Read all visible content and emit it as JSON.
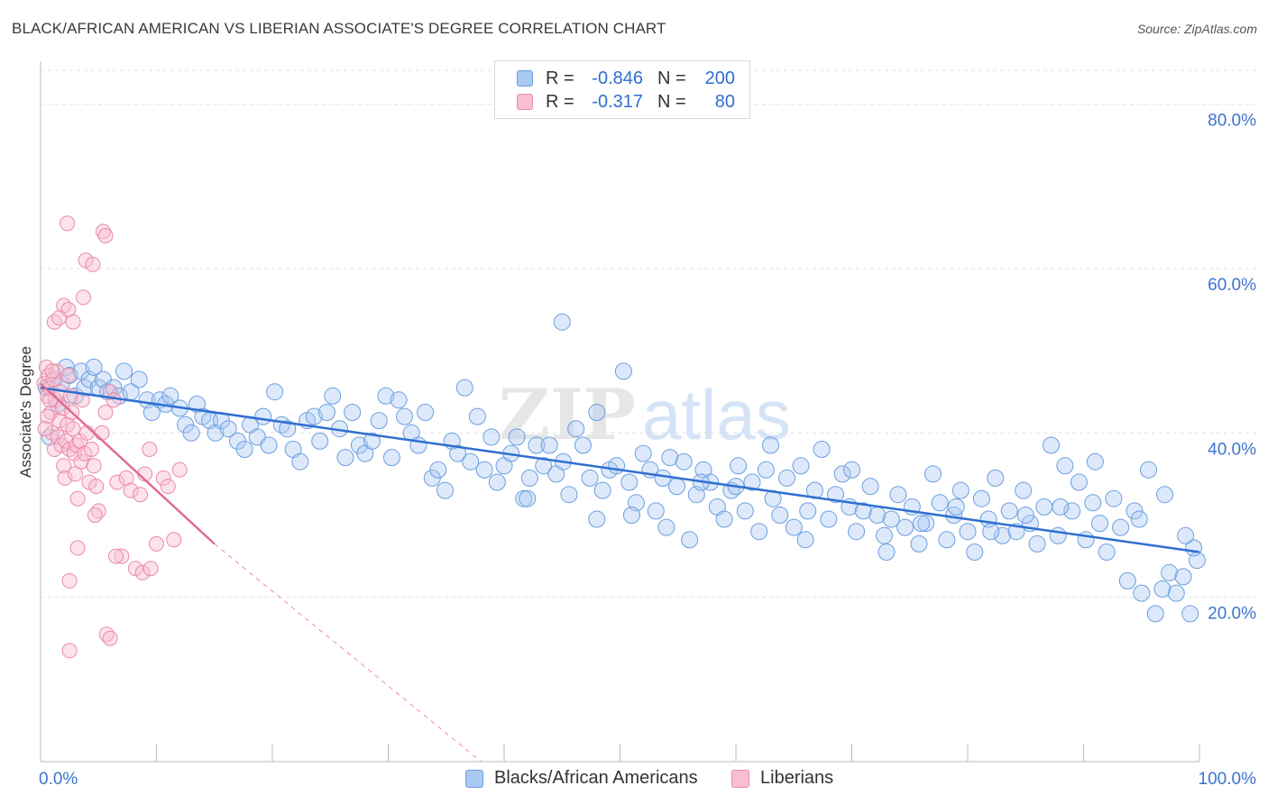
{
  "title": "BLACK/AFRICAN AMERICAN VS LIBERIAN ASSOCIATE'S DEGREE CORRELATION CHART",
  "source": "Source: ZipAtlas.com",
  "watermark": "ZIPatlas",
  "legend": {
    "rows": [
      {
        "r_label": "R =",
        "r_value": "-0.846",
        "n_label": "N =",
        "n_value": "200",
        "color": "#a9c8f2",
        "border": "#6b9fe0"
      },
      {
        "r_label": "R =",
        "r_value": "-0.317",
        "n_label": "N =",
        "n_value": "80",
        "color": "#f8bfd0",
        "border": "#e98aa8"
      }
    ]
  },
  "bottom_legend": [
    {
      "label": "Blacks/African Americans",
      "color": "#a9c8f2",
      "border": "#6b9fe0"
    },
    {
      "label": "Liberians",
      "color": "#f8bfd0",
      "border": "#e98aa8"
    }
  ],
  "chart_data": {
    "type": "scatter",
    "ylabel": "Associate's Degree",
    "xlabel": "",
    "xlim": [
      0,
      100
    ],
    "ylim": [
      0,
      85
    ],
    "x_tick_labels": [
      {
        "value": 0,
        "label": "0.0%"
      },
      {
        "value": 100,
        "label": "100.0%"
      }
    ],
    "y_tick_labels": [
      {
        "value": 20,
        "label": "20.0%"
      },
      {
        "value": 40,
        "label": "40.0%"
      },
      {
        "value": 60,
        "label": "60.0%"
      },
      {
        "value": 80,
        "label": "80.0%"
      }
    ],
    "grid": "horizontal dashed",
    "series": [
      {
        "name": "Blacks/African Americans",
        "color": "#6b9fe0",
        "trend": {
          "x0": 0,
          "y0": 45.5,
          "x1": 100,
          "y1": 25.5
        },
        "points": [
          [
            0.5,
            45.5
          ],
          [
            0.8,
            39.5
          ],
          [
            1.2,
            46.5
          ],
          [
            1.5,
            43.5
          ],
          [
            1.8,
            46.0
          ],
          [
            2.2,
            48.0
          ],
          [
            2.5,
            47.0
          ],
          [
            3.0,
            44.5
          ],
          [
            3.5,
            47.5
          ],
          [
            3.8,
            45.5
          ],
          [
            4.2,
            46.5
          ],
          [
            4.6,
            48.0
          ],
          [
            5.0,
            45.5
          ],
          [
            5.4,
            46.5
          ],
          [
            5.8,
            45.0
          ],
          [
            6.3,
            45.5
          ],
          [
            6.8,
            44.5
          ],
          [
            7.2,
            47.5
          ],
          [
            7.8,
            45.0
          ],
          [
            8.5,
            46.5
          ],
          [
            9.2,
            44.0
          ],
          [
            9.6,
            42.5
          ],
          [
            10.3,
            44.0
          ],
          [
            10.8,
            43.5
          ],
          [
            11.2,
            44.5
          ],
          [
            12.0,
            43.0
          ],
          [
            12.5,
            41.0
          ],
          [
            13.0,
            40.0
          ],
          [
            13.5,
            43.5
          ],
          [
            14.0,
            42.0
          ],
          [
            14.6,
            41.5
          ],
          [
            15.1,
            40.0
          ],
          [
            15.6,
            41.5
          ],
          [
            16.2,
            40.5
          ],
          [
            17.0,
            39.0
          ],
          [
            17.6,
            38.0
          ],
          [
            18.1,
            41.0
          ],
          [
            18.7,
            39.5
          ],
          [
            19.2,
            42.0
          ],
          [
            19.7,
            38.5
          ],
          [
            20.2,
            45.0
          ],
          [
            20.8,
            41.0
          ],
          [
            21.3,
            40.5
          ],
          [
            21.8,
            38.0
          ],
          [
            22.4,
            36.5
          ],
          [
            23.0,
            41.5
          ],
          [
            23.6,
            42.0
          ],
          [
            24.1,
            39.0
          ],
          [
            24.7,
            42.5
          ],
          [
            25.2,
            44.5
          ],
          [
            25.8,
            40.5
          ],
          [
            26.3,
            37.0
          ],
          [
            26.9,
            42.5
          ],
          [
            27.5,
            38.5
          ],
          [
            28.0,
            37.5
          ],
          [
            28.6,
            39.0
          ],
          [
            29.2,
            41.5
          ],
          [
            29.8,
            44.5
          ],
          [
            30.3,
            37.0
          ],
          [
            30.9,
            44.0
          ],
          [
            31.4,
            42.0
          ],
          [
            32.0,
            40.0
          ],
          [
            32.6,
            38.5
          ],
          [
            33.2,
            42.5
          ],
          [
            33.8,
            34.5
          ],
          [
            34.3,
            35.5
          ],
          [
            34.9,
            33.0
          ],
          [
            35.5,
            39.0
          ],
          [
            36.0,
            37.5
          ],
          [
            36.6,
            45.5
          ],
          [
            37.1,
            36.5
          ],
          [
            37.7,
            42.0
          ],
          [
            38.3,
            35.5
          ],
          [
            38.9,
            39.5
          ],
          [
            39.4,
            34.0
          ],
          [
            40.0,
            36.0
          ],
          [
            40.6,
            37.5
          ],
          [
            41.1,
            39.5
          ],
          [
            41.7,
            32.0
          ],
          [
            42.2,
            34.5
          ],
          [
            42.8,
            38.5
          ],
          [
            43.4,
            36.0
          ],
          [
            43.9,
            38.5
          ],
          [
            44.5,
            35.0
          ],
          [
            45.1,
            36.5
          ],
          [
            45.6,
            32.5
          ],
          [
            46.2,
            40.5
          ],
          [
            46.8,
            38.5
          ],
          [
            47.4,
            34.5
          ],
          [
            48.0,
            29.5
          ],
          [
            48.5,
            33.0
          ],
          [
            49.1,
            35.5
          ],
          [
            49.7,
            36.0
          ],
          [
            50.3,
            47.5
          ],
          [
            50.8,
            34.0
          ],
          [
            51.4,
            31.5
          ],
          [
            52.0,
            37.5
          ],
          [
            52.6,
            35.5
          ],
          [
            53.1,
            30.5
          ],
          [
            53.7,
            34.5
          ],
          [
            54.3,
            37.0
          ],
          [
            54.9,
            33.5
          ],
          [
            55.5,
            36.5
          ],
          [
            56.0,
            27.0
          ],
          [
            56.6,
            32.5
          ],
          [
            57.2,
            35.5
          ],
          [
            57.8,
            34.0
          ],
          [
            58.4,
            31.0
          ],
          [
            59.0,
            29.5
          ],
          [
            59.6,
            33.0
          ],
          [
            60.2,
            36.0
          ],
          [
            60.8,
            30.5
          ],
          [
            61.4,
            34.0
          ],
          [
            62.0,
            28.0
          ],
          [
            62.6,
            35.5
          ],
          [
            63.2,
            32.0
          ],
          [
            63.8,
            30.0
          ],
          [
            64.4,
            34.5
          ],
          [
            65.0,
            28.5
          ],
          [
            65.6,
            36.0
          ],
          [
            66.2,
            30.5
          ],
          [
            66.8,
            33.0
          ],
          [
            67.4,
            38.0
          ],
          [
            68.0,
            29.5
          ],
          [
            68.6,
            32.5
          ],
          [
            69.2,
            35.0
          ],
          [
            69.8,
            31.0
          ],
          [
            70.4,
            28.0
          ],
          [
            71.0,
            30.5
          ],
          [
            71.6,
            33.5
          ],
          [
            72.2,
            30.0
          ],
          [
            72.8,
            27.5
          ],
          [
            73.4,
            29.5
          ],
          [
            74.0,
            32.5
          ],
          [
            74.6,
            28.5
          ],
          [
            75.2,
            31.0
          ],
          [
            75.8,
            26.5
          ],
          [
            76.4,
            29.0
          ],
          [
            77.0,
            35.0
          ],
          [
            77.6,
            31.5
          ],
          [
            78.2,
            27.0
          ],
          [
            78.8,
            30.0
          ],
          [
            79.4,
            33.0
          ],
          [
            80.0,
            28.0
          ],
          [
            80.6,
            25.5
          ],
          [
            81.2,
            32.0
          ],
          [
            81.8,
            29.5
          ],
          [
            82.4,
            34.5
          ],
          [
            83.0,
            27.5
          ],
          [
            83.6,
            30.5
          ],
          [
            84.2,
            28.0
          ],
          [
            84.8,
            33.0
          ],
          [
            85.4,
            29.0
          ],
          [
            86.0,
            26.5
          ],
          [
            86.6,
            31.0
          ],
          [
            87.2,
            38.5
          ],
          [
            87.8,
            27.5
          ],
          [
            88.4,
            36.0
          ],
          [
            89.0,
            30.5
          ],
          [
            89.6,
            34.0
          ],
          [
            90.2,
            27.0
          ],
          [
            90.8,
            31.5
          ],
          [
            91.4,
            29.0
          ],
          [
            92.0,
            25.5
          ],
          [
            92.6,
            32.0
          ],
          [
            93.2,
            28.5
          ],
          [
            93.8,
            22.0
          ],
          [
            94.4,
            30.5
          ],
          [
            95.0,
            20.5
          ],
          [
            95.6,
            35.5
          ],
          [
            96.2,
            18.0
          ],
          [
            96.8,
            21.0
          ],
          [
            97.4,
            23.0
          ],
          [
            98.0,
            20.5
          ],
          [
            98.6,
            22.5
          ],
          [
            99.2,
            18.0
          ],
          [
            99.8,
            24.5
          ],
          [
            99.5,
            26.0
          ],
          [
            98.8,
            27.5
          ],
          [
            97.0,
            32.5
          ],
          [
            94.8,
            29.5
          ],
          [
            91.0,
            36.5
          ],
          [
            88.0,
            31.0
          ],
          [
            85.0,
            30.0
          ],
          [
            82.0,
            28.0
          ],
          [
            79.0,
            31.0
          ],
          [
            76.0,
            29.0
          ],
          [
            73.0,
            25.5
          ],
          [
            70.0,
            35.5
          ],
          [
            66.0,
            27.0
          ],
          [
            63.0,
            38.5
          ],
          [
            60.0,
            33.5
          ],
          [
            57.0,
            34.0
          ],
          [
            54.0,
            28.5
          ],
          [
            51.0,
            30.0
          ],
          [
            48.0,
            42.5
          ],
          [
            45.0,
            53.5
          ],
          [
            42.0,
            32.0
          ]
        ]
      },
      {
        "name": "Liberians",
        "color": "#e98aa8",
        "trend": {
          "x0": 0,
          "y0": 46.0,
          "x1": 15,
          "y1": 26.5
        },
        "trend_dashed_to": {
          "x": 38,
          "y": 0
        },
        "points": [
          [
            0.3,
            46.0
          ],
          [
            0.5,
            48.0
          ],
          [
            0.6,
            44.5
          ],
          [
            0.7,
            47.0
          ],
          [
            0.8,
            45.5
          ],
          [
            0.9,
            42.5
          ],
          [
            1.0,
            40.0
          ],
          [
            1.1,
            46.5
          ],
          [
            1.2,
            38.0
          ],
          [
            1.3,
            44.0
          ],
          [
            1.4,
            47.5
          ],
          [
            1.5,
            39.5
          ],
          [
            1.6,
            41.5
          ],
          [
            1.7,
            45.0
          ],
          [
            1.8,
            38.5
          ],
          [
            1.9,
            43.0
          ],
          [
            2.0,
            36.0
          ],
          [
            2.1,
            34.5
          ],
          [
            2.2,
            39.0
          ],
          [
            2.3,
            41.0
          ],
          [
            2.4,
            47.0
          ],
          [
            2.5,
            38.0
          ],
          [
            2.6,
            44.5
          ],
          [
            2.7,
            42.5
          ],
          [
            2.8,
            40.5
          ],
          [
            2.9,
            37.5
          ],
          [
            3.0,
            35.0
          ],
          [
            3.1,
            38.5
          ],
          [
            3.2,
            32.0
          ],
          [
            3.4,
            39.0
          ],
          [
            3.5,
            36.5
          ],
          [
            3.6,
            44.0
          ],
          [
            3.8,
            37.5
          ],
          [
            4.0,
            40.0
          ],
          [
            4.2,
            34.0
          ],
          [
            4.4,
            38.0
          ],
          [
            4.6,
            36.0
          ],
          [
            4.8,
            33.5
          ],
          [
            5.0,
            30.5
          ],
          [
            5.3,
            40.0
          ],
          [
            5.6,
            42.5
          ],
          [
            6.0,
            45.0
          ],
          [
            6.3,
            44.0
          ],
          [
            6.6,
            34.0
          ],
          [
            7.0,
            25.0
          ],
          [
            7.4,
            34.5
          ],
          [
            7.8,
            33.0
          ],
          [
            8.2,
            23.5
          ],
          [
            8.6,
            32.5
          ],
          [
            9.0,
            35.0
          ],
          [
            9.4,
            38.0
          ],
          [
            10.0,
            26.5
          ],
          [
            10.6,
            34.5
          ],
          [
            11.0,
            33.5
          ],
          [
            11.5,
            27.0
          ],
          [
            12.0,
            35.5
          ],
          [
            2.3,
            65.5
          ],
          [
            5.4,
            64.5
          ],
          [
            5.6,
            64.0
          ],
          [
            3.9,
            61.0
          ],
          [
            4.5,
            60.5
          ],
          [
            3.7,
            56.5
          ],
          [
            2.0,
            55.5
          ],
          [
            2.4,
            55.0
          ],
          [
            1.2,
            53.5
          ],
          [
            1.6,
            54.0
          ],
          [
            2.8,
            53.5
          ],
          [
            1.0,
            47.5
          ],
          [
            0.8,
            44.0
          ],
          [
            0.6,
            42.0
          ],
          [
            0.4,
            40.5
          ],
          [
            2.5,
            22.0
          ],
          [
            3.2,
            26.0
          ],
          [
            4.7,
            30.0
          ],
          [
            5.7,
            15.5
          ],
          [
            6.0,
            15.0
          ],
          [
            2.5,
            13.5
          ],
          [
            8.8,
            23.0
          ],
          [
            9.5,
            23.5
          ],
          [
            6.5,
            25.0
          ]
        ]
      }
    ]
  }
}
